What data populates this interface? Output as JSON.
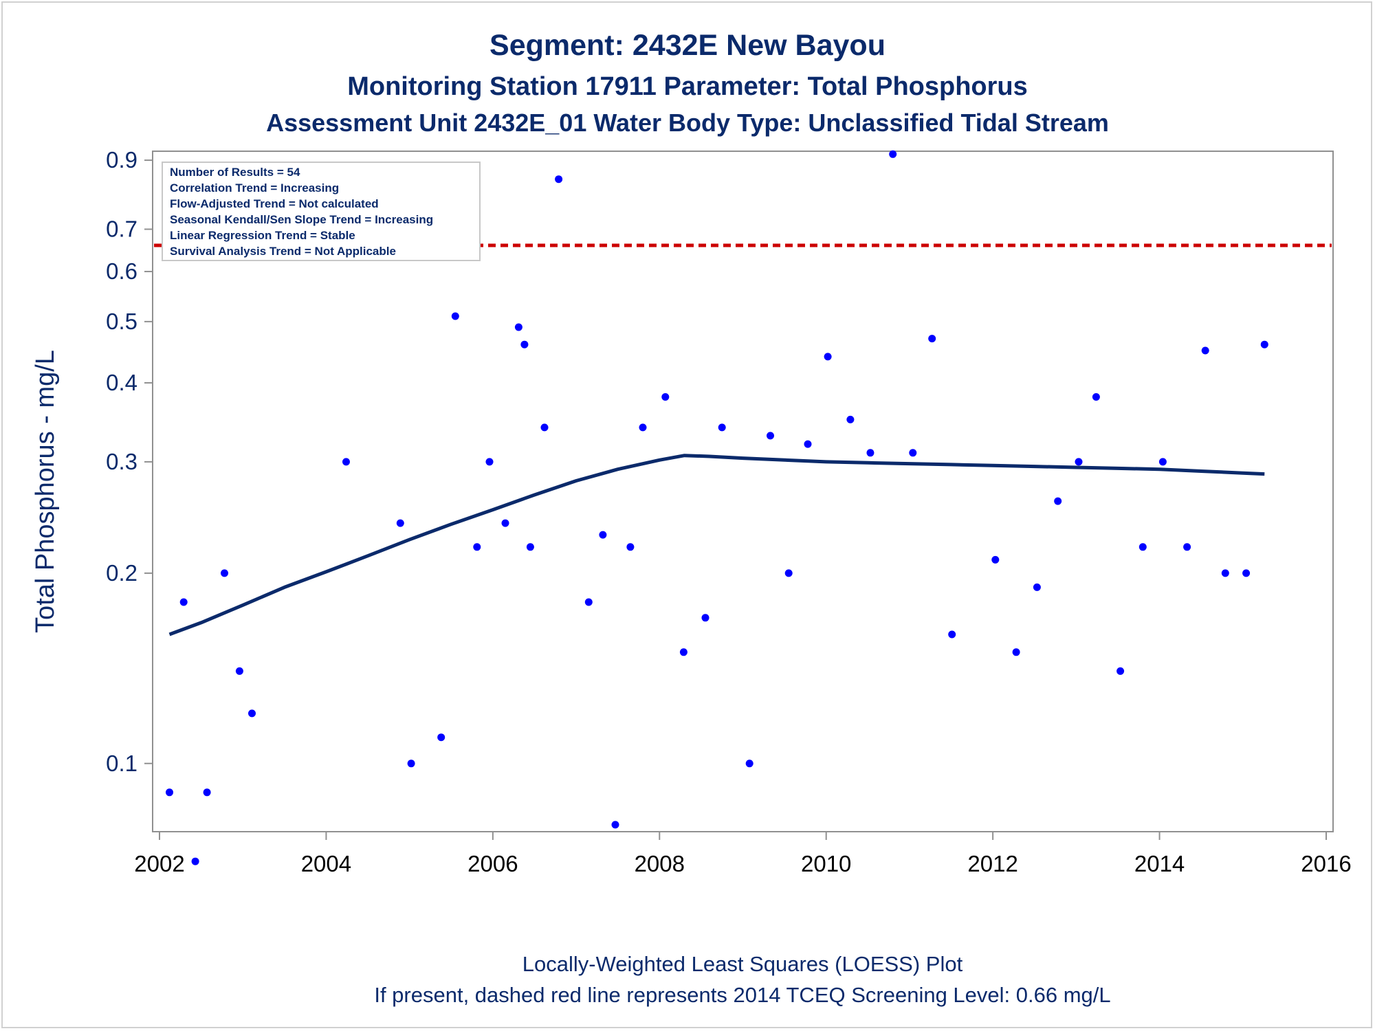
{
  "chart_data": {
    "type": "scatter",
    "title": "Segment: 2432E  New Bayou",
    "subtitle": "Monitoring Station 17911 Parameter: Total Phosphorus",
    "subtitle2": "Assessment Unit 2432E_01   Water Body Type: Unclassified Tidal Stream",
    "ylabel": "Total Phosphorus - mg/L",
    "xlabel": "",
    "yscale": "log",
    "xlim": [
      2002,
      2016
    ],
    "ylim": [
      0.078,
      0.93
    ],
    "x_ticks": [
      "2002",
      "2004",
      "2006",
      "2008",
      "2010",
      "2012",
      "2014",
      "2016"
    ],
    "y_ticks": [
      "0.1",
      "0.2",
      "0.3",
      "0.4",
      "0.5",
      "0.6",
      "0.7",
      "0.9"
    ],
    "screening_level": 0.66,
    "inset": [
      "Number of Results = 54",
      "Correlation Trend = Increasing",
      "Flow-Adjusted Trend = Not calculated",
      "Seasonal Kendall/Sen Slope Trend = Increasing",
      "Linear Regression Trend = Stable",
      "Survival Analysis Trend = Not Applicable"
    ],
    "footnotes": [
      "Locally-Weighted Least Squares (LOESS) Plot",
      "If present, dashed red line represents 2014 TCEQ Screening Level: 0.66 mg/L"
    ],
    "colors": {
      "points": "#0000ff",
      "loess": "#0b2a6b",
      "screening": "#cc0000",
      "text": "#0b2a6b",
      "axis": "#909090"
    },
    "series": [
      {
        "type": "scatter",
        "x": [
          2002.12,
          2002.29,
          2002.43,
          2002.57,
          2002.78,
          2002.96,
          2003.11,
          2004.24,
          2004.89,
          2005.02,
          2005.38,
          2005.55,
          2005.81,
          2005.96,
          2006.15,
          2006.31,
          2006.38,
          2006.45,
          2006.62,
          2006.79,
          2007.15,
          2007.32,
          2007.47,
          2007.65,
          2007.8,
          2008.07,
          2008.29,
          2008.55,
          2008.75,
          2009.08,
          2009.33,
          2009.55,
          2009.78,
          2010.02,
          2010.29,
          2010.53,
          2010.8,
          2011.04,
          2011.27,
          2011.51,
          2012.03,
          2012.28,
          2012.53,
          2012.78,
          2013.03,
          2013.24,
          2013.53,
          2013.8,
          2014.04,
          2014.33,
          2014.55,
          2014.79,
          2015.04,
          2015.26
        ],
        "y": [
          0.09,
          0.18,
          0.07,
          0.09,
          0.2,
          0.14,
          0.12,
          0.3,
          0.24,
          0.1,
          0.11,
          0.51,
          0.22,
          0.3,
          0.24,
          0.49,
          0.46,
          0.22,
          0.34,
          0.84,
          0.18,
          0.23,
          0.08,
          0.22,
          0.34,
          0.38,
          0.15,
          0.17,
          0.34,
          0.1,
          0.33,
          0.2,
          0.32,
          0.44,
          0.35,
          0.31,
          0.92,
          0.31,
          0.47,
          0.16,
          0.21,
          0.15,
          0.19,
          0.26,
          0.3,
          0.38,
          0.14,
          0.22,
          0.3,
          0.22,
          0.45,
          0.2,
          0.2,
          0.46
        ]
      },
      {
        "type": "line",
        "x": [
          2002.12,
          2002.5,
          2003.0,
          2003.5,
          2004.0,
          2004.5,
          2005.0,
          2005.5,
          2006.0,
          2006.5,
          2007.0,
          2007.5,
          2008.0,
          2008.3,
          2008.6,
          2009.0,
          2009.5,
          2010.0,
          2010.5,
          2011.0,
          2011.5,
          2012.0,
          2012.5,
          2013.0,
          2013.5,
          2014.0,
          2014.5,
          2015.0,
          2015.26
        ],
        "y": [
          0.16,
          0.167,
          0.178,
          0.19,
          0.201,
          0.213,
          0.226,
          0.239,
          0.252,
          0.266,
          0.28,
          0.292,
          0.302,
          0.307,
          0.306,
          0.304,
          0.302,
          0.3,
          0.299,
          0.298,
          0.297,
          0.296,
          0.295,
          0.294,
          0.293,
          0.292,
          0.29,
          0.288,
          0.287
        ]
      }
    ]
  }
}
